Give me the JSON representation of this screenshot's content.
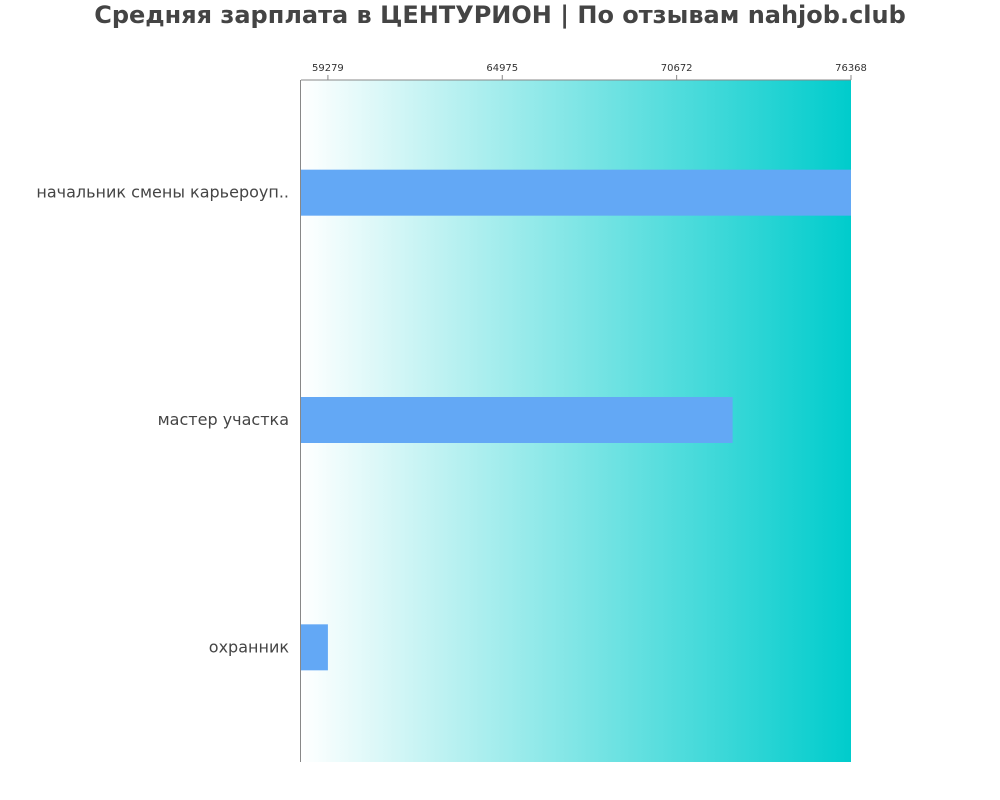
{
  "title": "Средняя зарплата в ЦЕНТУРИОН | По отзывам nahjob.club",
  "colors": {
    "bar": "#63a8f5",
    "gradient_start": "#ffffff",
    "gradient_end": "#00cccc",
    "axis": "#888888",
    "text": "#444444"
  },
  "chart_data": {
    "type": "bar",
    "orientation": "horizontal",
    "title": "Средняя зарплата в ЦЕНТУРИОН | По отзывам nahjob.club",
    "categories": [
      "начальник смены карьероуп..",
      "мастер участка",
      "охранник"
    ],
    "values": [
      76368,
      72500,
      59279
    ],
    "x_ticks": [
      59279,
      64975,
      70672,
      76368
    ],
    "x_tick_labels": [
      "59279",
      "64975",
      "70672",
      "76368"
    ],
    "xlim": [
      58400,
      76368
    ],
    "xlabel": "",
    "ylabel": "",
    "axis_position": "top",
    "grid": false,
    "legend": "none"
  }
}
